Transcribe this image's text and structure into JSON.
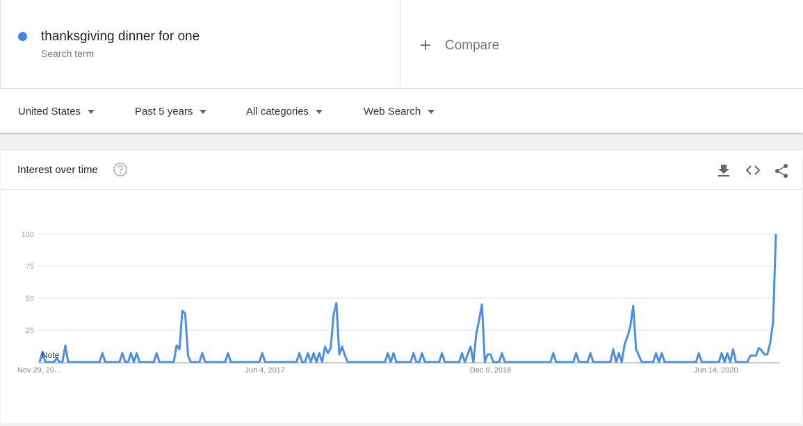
{
  "header": {
    "term": "thanksgiving dinner for one",
    "term_type": "Search term",
    "compare": "Compare"
  },
  "filters": [
    "United States",
    "Past 5 years",
    "All categories",
    "Web Search"
  ],
  "card_title": "Interest over time",
  "note": "Note",
  "chart_data": {
    "type": "line",
    "color": "#4a90e2",
    "grid": true,
    "ylim": [
      0,
      100
    ],
    "yticks": [
      25,
      50,
      75,
      100
    ],
    "categories": [
      "Nov 29, 20…",
      null,
      null,
      null,
      null,
      null,
      null,
      null,
      null,
      null,
      null,
      null,
      null,
      null,
      null,
      null,
      null,
      null,
      null,
      null,
      null,
      null,
      null,
      null,
      null,
      null,
      null,
      null,
      null,
      null,
      null,
      null,
      null,
      null,
      null,
      null,
      null,
      null,
      null,
      null,
      null,
      null,
      null,
      null,
      null,
      null,
      null,
      null,
      null,
      null,
      null,
      null,
      null,
      null,
      null,
      null,
      null,
      null,
      null,
      null,
      null,
      null,
      null,
      null,
      null,
      null,
      null,
      null,
      null,
      null,
      null,
      null,
      null,
      null,
      null,
      null,
      null,
      null,
      null,
      "Jun 4, 2017",
      null,
      null,
      null,
      null,
      null,
      null,
      null,
      null,
      null,
      null,
      null,
      null,
      null,
      null,
      null,
      null,
      null,
      null,
      null,
      null,
      null,
      null,
      null,
      null,
      null,
      null,
      null,
      null,
      null,
      null,
      null,
      null,
      null,
      null,
      null,
      null,
      null,
      null,
      null,
      null,
      null,
      null,
      null,
      null,
      null,
      null,
      null,
      null,
      null,
      null,
      null,
      null,
      null,
      null,
      null,
      null,
      null,
      null,
      null,
      null,
      null,
      null,
      null,
      null,
      null,
      null,
      null,
      null,
      null,
      null,
      null,
      null,
      null,
      null,
      null,
      null,
      null,
      null,
      "Dec 9, 2018",
      null,
      null,
      null,
      null,
      null,
      null,
      null,
      null,
      null,
      null,
      null,
      null,
      null,
      null,
      null,
      null,
      null,
      null,
      null,
      null,
      null,
      null,
      null,
      null,
      null,
      null,
      null,
      null,
      null,
      null,
      null,
      null,
      null,
      null,
      null,
      null,
      null,
      null,
      null,
      null,
      null,
      null,
      null,
      null,
      null,
      null,
      null,
      null,
      null,
      null,
      null,
      null,
      null,
      null,
      null,
      null,
      null,
      null,
      null,
      null,
      null,
      null,
      null,
      null,
      null,
      null,
      null,
      null,
      null,
      null,
      null,
      null,
      null,
      null,
      null,
      null,
      null,
      null,
      "Jun 14, 2020",
      null,
      null,
      null,
      null,
      null,
      null,
      null,
      null,
      null,
      null,
      null,
      null,
      null,
      null,
      null,
      null,
      null,
      null,
      null,
      null,
      null
    ],
    "values": [
      0,
      8,
      0,
      0,
      0,
      0,
      3,
      0,
      0,
      13,
      0,
      0,
      0,
      0,
      0,
      0,
      0,
      0,
      0,
      0,
      0,
      0,
      7,
      0,
      0,
      0,
      0,
      0,
      0,
      7,
      0,
      0,
      7,
      0,
      7,
      0,
      0,
      0,
      0,
      0,
      0,
      7,
      0,
      0,
      0,
      0,
      0,
      0,
      13,
      10,
      40,
      38,
      5,
      0,
      0,
      0,
      0,
      7,
      0,
      0,
      0,
      0,
      0,
      0,
      0,
      0,
      7,
      0,
      0,
      0,
      0,
      0,
      0,
      0,
      0,
      0,
      0,
      0,
      7,
      0,
      0,
      0,
      0,
      0,
      0,
      0,
      0,
      0,
      0,
      0,
      0,
      7,
      0,
      0,
      7,
      0,
      7,
      0,
      7,
      0,
      12,
      7,
      11,
      37,
      46,
      6,
      12,
      5,
      0,
      0,
      0,
      0,
      0,
      0,
      0,
      0,
      0,
      0,
      0,
      0,
      0,
      0,
      7,
      0,
      7,
      0,
      0,
      0,
      0,
      0,
      0,
      7,
      0,
      0,
      7,
      0,
      0,
      0,
      0,
      0,
      0,
      7,
      0,
      0,
      0,
      0,
      0,
      0,
      7,
      0,
      6,
      12,
      0,
      22,
      33,
      45,
      0,
      6,
      6,
      0,
      0,
      0,
      7,
      0,
      0,
      0,
      0,
      0,
      0,
      0,
      0,
      0,
      0,
      0,
      0,
      0,
      0,
      0,
      0,
      0,
      7,
      0,
      0,
      0,
      0,
      0,
      0,
      0,
      7,
      0,
      0,
      0,
      0,
      7,
      0,
      0,
      0,
      0,
      0,
      0,
      0,
      10,
      0,
      7,
      0,
      14,
      20,
      28,
      44,
      10,
      5,
      0,
      0,
      0,
      0,
      0,
      7,
      0,
      7,
      0,
      0,
      0,
      0,
      0,
      0,
      0,
      0,
      0,
      0,
      0,
      0,
      7,
      0,
      0,
      0,
      0,
      0,
      0,
      0,
      7,
      0,
      7,
      0,
      10,
      0,
      0,
      0,
      0,
      0,
      5,
      5,
      5,
      11,
      9,
      6,
      6,
      15,
      31,
      100
    ]
  }
}
